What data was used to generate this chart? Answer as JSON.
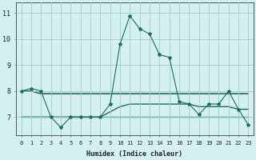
{
  "xlabel": "Humidex (Indice chaleur)",
  "x": [
    0,
    1,
    2,
    3,
    4,
    5,
    6,
    7,
    8,
    9,
    10,
    11,
    12,
    13,
    14,
    15,
    16,
    17,
    18,
    19,
    20,
    21,
    22,
    23
  ],
  "line_main": [
    8.0,
    8.1,
    8.0,
    7.0,
    6.6,
    7.0,
    7.0,
    7.0,
    7.0,
    7.5,
    9.8,
    10.9,
    10.4,
    10.2,
    9.4,
    9.3,
    7.6,
    7.5,
    7.1,
    7.5,
    7.5,
    8.0,
    7.3,
    6.7
  ],
  "line_upper": [
    8.0,
    8.0,
    7.9,
    7.9,
    7.9,
    7.9,
    7.9,
    7.9,
    7.9,
    7.9,
    7.9,
    7.9,
    7.9,
    7.9,
    7.9,
    7.9,
    7.9,
    7.9,
    7.9,
    7.9,
    7.9,
    7.9,
    7.9,
    7.9
  ],
  "line_mid": [
    7.0,
    7.0,
    7.0,
    7.0,
    7.0,
    7.0,
    7.0,
    7.0,
    7.0,
    7.2,
    7.4,
    7.5,
    7.5,
    7.5,
    7.5,
    7.5,
    7.5,
    7.5,
    7.4,
    7.4,
    7.4,
    7.4,
    7.3,
    7.3
  ],
  "line_lower": [
    7.0,
    7.0,
    7.0,
    7.0,
    7.0,
    7.0,
    7.0,
    7.0,
    7.0,
    7.0,
    7.0,
    7.0,
    7.0,
    7.0,
    7.0,
    7.0,
    7.0,
    7.0,
    7.0,
    7.0,
    7.0,
    7.0,
    7.0,
    7.0
  ],
  "line_color": "#1e6b5e",
  "bg_color": "#d4f0f0",
  "grid_color": "#a0cccc",
  "ylim": [
    6.3,
    11.4
  ],
  "yticks": [
    7,
    8,
    9,
    10,
    11
  ],
  "xlim": [
    -0.5,
    23.5
  ]
}
